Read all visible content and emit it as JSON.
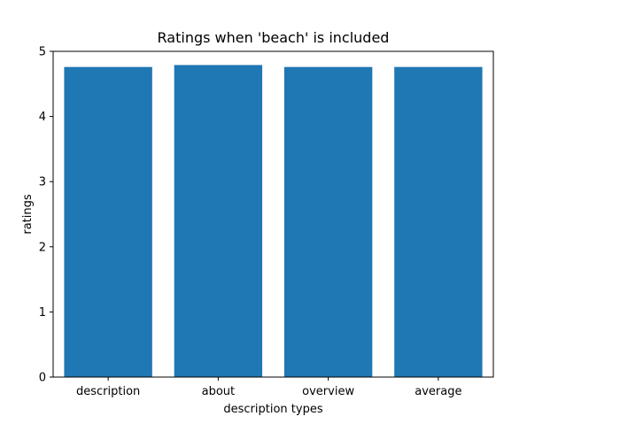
{
  "chart_data": {
    "type": "bar",
    "title": "Ratings when 'beach' is included",
    "xlabel": "description types",
    "ylabel": "ratings",
    "categories": [
      "description",
      "about",
      "overview",
      "average"
    ],
    "values": [
      4.76,
      4.79,
      4.76,
      4.76
    ],
    "ylim": [
      0,
      5
    ],
    "yticks": [
      "0",
      "1",
      "2",
      "3",
      "4",
      "5"
    ],
    "bar_color": "#1f77b4",
    "grid": false,
    "legend": "none"
  }
}
